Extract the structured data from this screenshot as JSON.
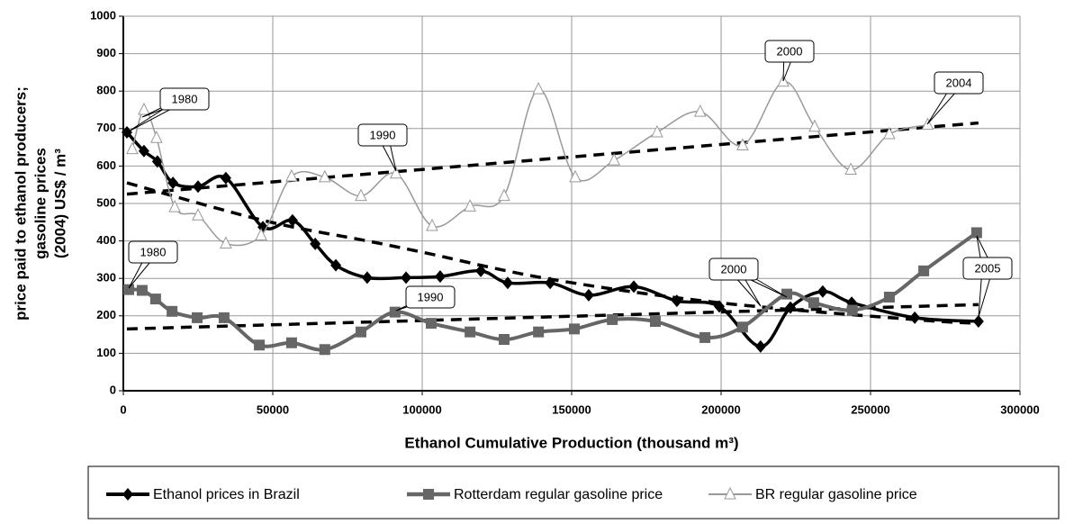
{
  "chart_data": {
    "type": "line",
    "xlabel": "Ethanol Cumulative Production (thousand m³)",
    "ylabel": [
      "price paid to ethanol producers;",
      "gasoline prices",
      "(2004) US$ / m³"
    ],
    "xlim": [
      0,
      300000
    ],
    "xticks": [
      0,
      50000,
      100000,
      150000,
      200000,
      250000,
      300000
    ],
    "ylim": [
      0,
      1000
    ],
    "yticks": [
      0,
      100,
      200,
      300,
      400,
      500,
      600,
      700,
      800,
      900,
      1000
    ],
    "grid": true,
    "series": [
      {
        "name": "Ethanol prices in Brazil",
        "color": "#000000",
        "marker": "diamond",
        "x": [
          1200,
          6900,
          11400,
          16600,
          25000,
          34300,
          46700,
          56600,
          64200,
          71100,
          81600,
          94600,
          106000,
          119600,
          128600,
          142800,
          155700,
          170800,
          185200,
          199400,
          213200,
          223200,
          234000,
          243700,
          264800,
          286100
        ],
        "values": [
          690,
          640,
          612,
          555,
          545,
          568,
          437,
          455,
          392,
          335,
          302,
          302,
          305,
          320,
          288,
          288,
          255,
          278,
          240,
          225,
          118,
          222,
          265,
          235,
          195,
          185
        ]
      },
      {
        "name": "Rotterdam regular gasoline price",
        "color": "#666666",
        "marker": "square",
        "x": [
          1800,
          6300,
          10800,
          16300,
          24700,
          33700,
          45500,
          56300,
          67400,
          79500,
          90900,
          103000,
          116000,
          127400,
          138900,
          150900,
          163600,
          178000,
          194600,
          207200,
          222000,
          231000,
          243900,
          256300,
          267800,
          285500
        ],
        "values": [
          270,
          268,
          245,
          212,
          195,
          195,
          122,
          128,
          110,
          157,
          210,
          180,
          157,
          137,
          157,
          165,
          190,
          185,
          142,
          170,
          258,
          235,
          215,
          250,
          320,
          422
        ]
      },
      {
        "name": "BR regular gasoline price",
        "color": "#999999",
        "marker": "triangle",
        "x": [
          3000,
          6900,
          11100,
          17200,
          25000,
          34300,
          46100,
          56300,
          67400,
          79500,
          91200,
          103300,
          116000,
          127400,
          138900,
          151200,
          164200,
          178600,
          193000,
          207200,
          220800,
          231300,
          243400,
          256300,
          269100
        ],
        "values": [
          645,
          750,
          675,
          490,
          468,
          393,
          415,
          572,
          570,
          520,
          580,
          440,
          492,
          520,
          805,
          570,
          615,
          690,
          745,
          655,
          825,
          705,
          590,
          685,
          710
        ]
      }
    ],
    "trendlines": [
      {
        "color": "#000000",
        "x": [
          1200,
          46700,
          81600,
          100000,
          142800,
          199400,
          264800,
          286100
        ],
        "values": [
          555,
          455,
          400,
          370,
          298,
          235,
          190,
          180
        ]
      },
      {
        "color": "#000000",
        "x": [
          1200,
          286100
        ],
        "values": [
          165,
          230
        ]
      },
      {
        "color": "#000000",
        "x": [
          1200,
          286100
        ],
        "values": [
          525,
          715
        ]
      }
    ],
    "annotations": [
      "1980",
      "1980",
      "1990",
      "1990",
      "2000",
      "2000",
      "2004",
      "2005"
    ]
  }
}
